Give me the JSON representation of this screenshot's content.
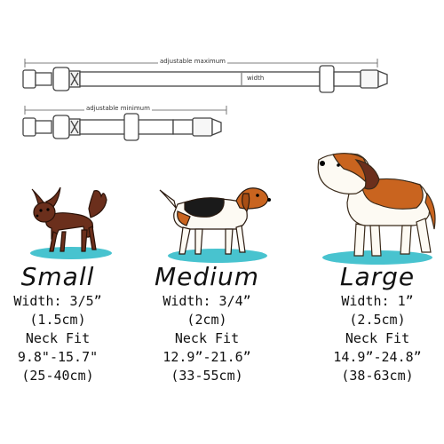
{
  "diagram": {
    "max_label": "adjustable maximum",
    "min_label": "adjustable minimum",
    "width_label": "width"
  },
  "sizes": [
    {
      "title": "Small",
      "width": "Width: 3/5”",
      "width_cm": "(1.5cm)",
      "neck_label": "Neck Fit",
      "neck_in": "9.8\"-15.7\"",
      "neck_cm": "(25-40cm)"
    },
    {
      "title": "Medium",
      "width": "Width: 3/4”",
      "width_cm": "(2cm)",
      "neck_label": "Neck Fit",
      "neck_in": "12.9”-21.6”",
      "neck_cm": "(33-55cm)"
    },
    {
      "title": "Large",
      "width": "Width: 1”",
      "width_cm": "(2.5cm)",
      "neck_label": "Neck Fit",
      "neck_in": "14.9”-24.8”",
      "neck_cm": "(38-63cm)"
    }
  ],
  "colors": {
    "puddle": "#48c3cf",
    "brown": "#c9641f",
    "dark_brown": "#6b2f1c",
    "black": "#1a1a1a"
  }
}
